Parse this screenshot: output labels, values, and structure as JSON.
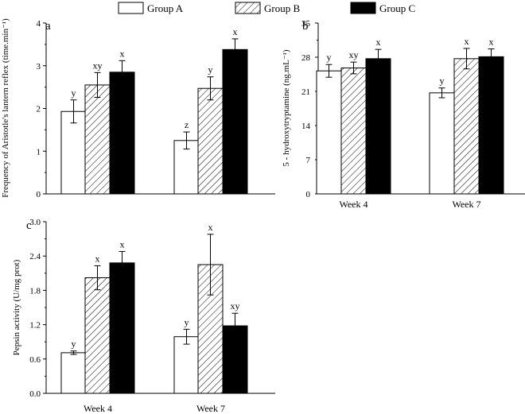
{
  "legend": {
    "items": [
      {
        "name": "Group A",
        "fill": "white"
      },
      {
        "name": "Group B",
        "fill": "hatch"
      },
      {
        "name": "Group C",
        "fill": "black"
      }
    ]
  },
  "colors": {
    "group_c": "#000000",
    "axis": "#000000",
    "bar_outline": "#000000"
  },
  "chart_data": [
    {
      "type": "bar",
      "panel_label": "a",
      "ylabel": "Frequency of Aristotle's lantern reflex (time.min⁻¹)",
      "xlabel": "",
      "categories": [
        "",
        ""
      ],
      "show_tick_labels": false,
      "ylim": [
        0,
        4
      ],
      "yticks": [
        "0",
        "1",
        "2",
        "3",
        "4"
      ],
      "series": [
        {
          "name": "Group A",
          "values": [
            1.93,
            1.25
          ],
          "errors": [
            0.27,
            0.2
          ],
          "labels": [
            "y",
            "z"
          ]
        },
        {
          "name": "Group B",
          "values": [
            2.55,
            2.47
          ],
          "errors": [
            0.29,
            0.27
          ],
          "labels": [
            "xy",
            "y"
          ]
        },
        {
          "name": "Group C",
          "values": [
            2.85,
            3.38
          ],
          "errors": [
            0.27,
            0.25
          ],
          "labels": [
            "x",
            "x"
          ]
        }
      ],
      "grid": false
    },
    {
      "type": "bar",
      "panel_label": "b",
      "ylabel": "5 - hydroxytryptamine (ng.mL⁻¹)",
      "xlabel": "",
      "categories": [
        "Week 4",
        "Week 7"
      ],
      "show_tick_labels": true,
      "ylim": [
        0,
        35
      ],
      "yticks": [
        "0",
        "7",
        "14",
        "21",
        "28",
        "35"
      ],
      "series": [
        {
          "name": "Group A",
          "values": [
            25.2,
            20.7
          ],
          "errors": [
            1.3,
            1.0
          ],
          "labels": [
            "y",
            "y"
          ]
        },
        {
          "name": "Group B",
          "values": [
            25.8,
            27.7
          ],
          "errors": [
            1.2,
            2.1
          ],
          "labels": [
            "xy",
            "x"
          ]
        },
        {
          "name": "Group C",
          "values": [
            27.7,
            28.1
          ],
          "errors": [
            1.9,
            1.6
          ],
          "labels": [
            "x",
            "x"
          ]
        }
      ],
      "grid": false
    },
    {
      "type": "bar",
      "panel_label": "c",
      "ylabel": "Pepsin activity (U/mg prot)",
      "xlabel": "",
      "categories": [
        "Week 4",
        "Week 7"
      ],
      "show_tick_labels": true,
      "ylim": [
        0,
        3.0
      ],
      "yticks": [
        "0.0",
        "0.6",
        "1.2",
        "1.8",
        "2.4",
        "3.0"
      ],
      "series": [
        {
          "name": "Group A",
          "values": [
            0.71,
            0.99
          ],
          "errors": [
            0.03,
            0.13
          ],
          "labels": [
            "y",
            "y"
          ]
        },
        {
          "name": "Group B",
          "values": [
            2.02,
            2.25
          ],
          "errors": [
            0.21,
            0.53
          ],
          "labels": [
            "x",
            "x"
          ]
        },
        {
          "name": "Group C",
          "values": [
            2.28,
            1.18
          ],
          "errors": [
            0.2,
            0.22
          ],
          "labels": [
            "x",
            "xy"
          ]
        }
      ],
      "grid": false
    }
  ]
}
